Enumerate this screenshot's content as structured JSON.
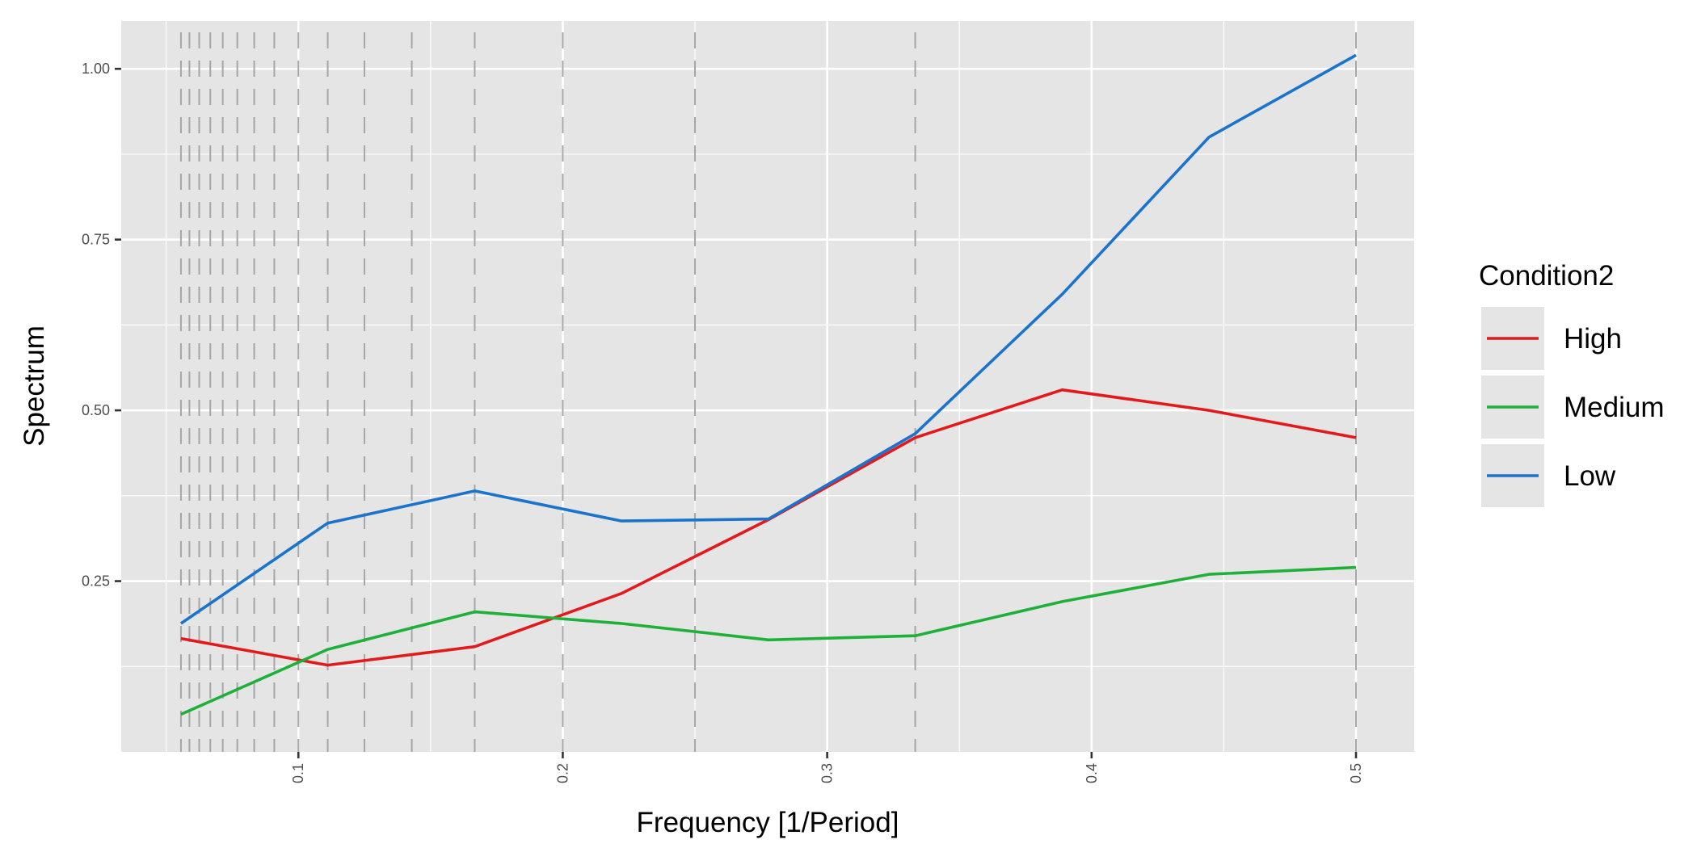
{
  "chart_data": {
    "type": "line",
    "xlabel": "Frequency [1/Period]",
    "ylabel": "Spectrum",
    "xlim": [
      0.033,
      0.522
    ],
    "ylim": [
      0.0,
      1.07
    ],
    "x_ticks": [
      0.1,
      0.2,
      0.3,
      0.4,
      0.5
    ],
    "x_tick_labels": [
      "0.1",
      "0.2",
      "0.3",
      "0.4",
      "0.5"
    ],
    "y_ticks": [
      0.25,
      0.5,
      0.75,
      1.0
    ],
    "y_tick_labels": [
      "0.25",
      "0.50",
      "0.75",
      "1.00"
    ],
    "grid": true,
    "reference_lines": {
      "style": "dashed",
      "color": "#a6a6a6",
      "x": [
        0.0556,
        0.0588,
        0.0625,
        0.0667,
        0.0714,
        0.0769,
        0.0833,
        0.0909,
        0.1,
        0.1111,
        0.125,
        0.1429,
        0.1667,
        0.2,
        0.25,
        0.3333,
        0.5
      ]
    },
    "x": [
      0.0556,
      0.1111,
      0.1667,
      0.2222,
      0.2778,
      0.3333,
      0.3889,
      0.4444,
      0.5
    ],
    "series": [
      {
        "name": "High",
        "color": "#e31a1c",
        "values": [
          0.166,
          0.127,
          0.154,
          0.232,
          0.34,
          0.46,
          0.53,
          0.5,
          0.46
        ]
      },
      {
        "name": "Medium",
        "color": "#1fb03a",
        "values": [
          0.055,
          0.15,
          0.205,
          0.188,
          0.164,
          0.17,
          0.22,
          0.26,
          0.27
        ]
      },
      {
        "name": "Low",
        "color": "#1a73cc",
        "values": [
          0.188,
          0.335,
          0.382,
          0.338,
          0.341,
          0.466,
          0.67,
          0.9,
          1.02
        ]
      }
    ],
    "legend": {
      "title": "Condition2",
      "position": "right"
    }
  },
  "colors": {
    "panel_background": "#e5e5e5",
    "grid_line": "#ffffff",
    "axis_tick": "#333333"
  }
}
